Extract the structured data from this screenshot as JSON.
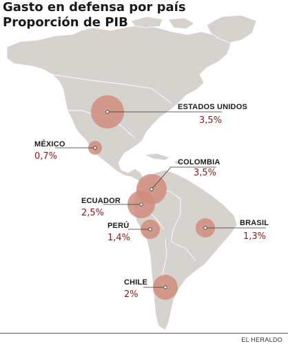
{
  "title": {
    "line1": "Gasto en defensa por país",
    "line2": "Proporción de PIB"
  },
  "credit": "EL HERALDO",
  "colors": {
    "land": "#d6d3ce",
    "border": "#ffffff",
    "bubble": "#cf8b7a",
    "value_text": "#8a1b17"
  },
  "countries": [
    {
      "name": "ESTADOS UNIDOS",
      "value": "3,5%",
      "pct": 3.5
    },
    {
      "name": "MÉXICO",
      "value": "0,7%",
      "pct": 0.7
    },
    {
      "name": "COLOMBIA",
      "value": "3,5%",
      "pct": 3.5
    },
    {
      "name": "ECUADOR",
      "value": "2,5%",
      "pct": 2.5
    },
    {
      "name": "PERÚ",
      "value": "1,4%",
      "pct": 1.4
    },
    {
      "name": "BRASIL",
      "value": "1,3%",
      "pct": 1.3
    },
    {
      "name": "CHILE",
      "value": "2%",
      "pct": 2.0
    }
  ]
}
